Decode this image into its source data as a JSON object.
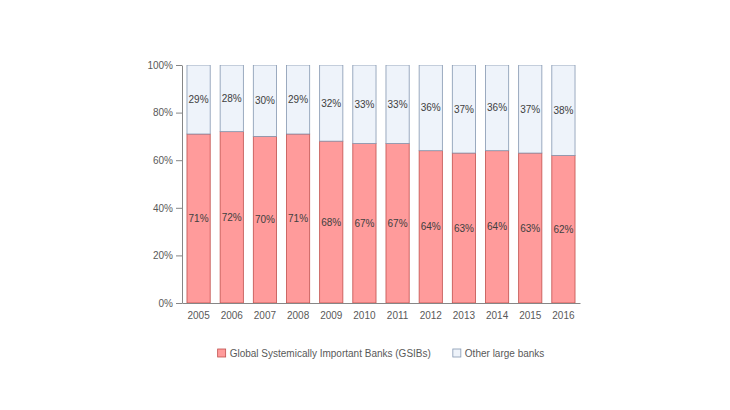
{
  "chart_data": {
    "type": "bar",
    "stacked": true,
    "data_labels": true,
    "grid": false,
    "legend": "bottom",
    "categories": [
      "2005",
      "2006",
      "2007",
      "2008",
      "2009",
      "2010",
      "2011",
      "2012",
      "2013",
      "2014",
      "2015",
      "2016"
    ],
    "series": [
      {
        "name": "Global Systemically Important Banks (GSIBs)",
        "color": "#ff9b9b",
        "values": [
          71,
          72,
          70,
          71,
          68,
          67,
          67,
          64,
          63,
          64,
          63,
          62
        ],
        "value_labels": [
          "71%",
          "72%",
          "70%",
          "71%",
          "68%",
          "67%",
          "67%",
          "64%",
          "63%",
          "64%",
          "63%",
          "62%"
        ]
      },
      {
        "name": "Other large banks",
        "color": "#eef3fa",
        "values": [
          29,
          28,
          30,
          29,
          32,
          33,
          33,
          36,
          37,
          36,
          37,
          38
        ],
        "value_labels": [
          "29%",
          "28%",
          "30%",
          "29%",
          "32%",
          "33%",
          "33%",
          "36%",
          "37%",
          "36%",
          "37%",
          "38%"
        ]
      }
    ],
    "ylim": [
      0,
      100
    ],
    "yticks": [
      {
        "value": 0,
        "label": "0%"
      },
      {
        "value": 20,
        "label": "20%"
      },
      {
        "value": 40,
        "label": "40%"
      },
      {
        "value": 60,
        "label": "60%"
      },
      {
        "value": 80,
        "label": "80%"
      },
      {
        "value": 100,
        "label": "100%"
      }
    ]
  }
}
